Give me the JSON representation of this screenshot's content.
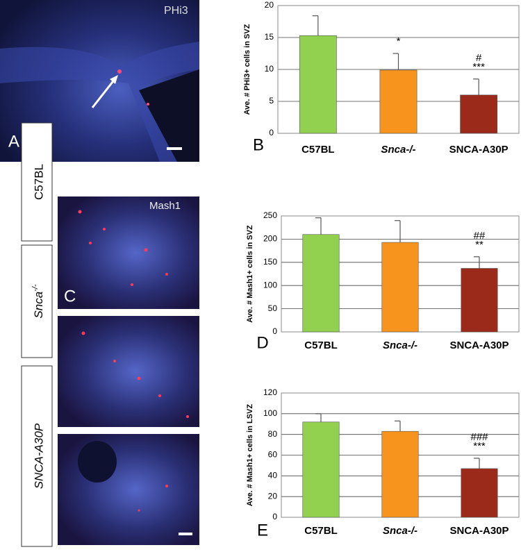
{
  "chart_data": [
    {
      "type": "bar",
      "panel": "B",
      "ylabel": "Ave. # PHi3+ cells in SVZ",
      "categories": [
        "C57BL",
        "Snca-/-",
        "SNCA-A30P"
      ],
      "values": [
        15.3,
        9.9,
        6.0
      ],
      "errors": [
        3.1,
        2.6,
        2.5
      ],
      "colors": [
        "#92d050",
        "#f7941d",
        "#9c2a1a"
      ],
      "ylim": [
        0,
        20
      ],
      "yticks": [
        0,
        5,
        10,
        15,
        20
      ],
      "grid": true,
      "annotations": [
        {
          "category": "Snca-/-",
          "text": "*"
        },
        {
          "category": "SNCA-A30P",
          "text": "***"
        },
        {
          "category": "SNCA-A30P",
          "text": "#"
        }
      ]
    },
    {
      "type": "bar",
      "panel": "D",
      "ylabel": "Ave. # Mash1+ cells in SVZ",
      "categories": [
        "C57BL",
        "Snca-/-",
        "SNCA-A30P"
      ],
      "values": [
        210,
        193,
        137
      ],
      "errors": [
        36,
        47,
        25
      ],
      "colors": [
        "#92d050",
        "#f7941d",
        "#9c2a1a"
      ],
      "ylim": [
        0,
        250
      ],
      "yticks": [
        0,
        50,
        100,
        150,
        200,
        250
      ],
      "grid": true,
      "annotations": [
        {
          "category": "SNCA-A30P",
          "text": "**"
        },
        {
          "category": "SNCA-A30P",
          "text": "##"
        }
      ]
    },
    {
      "type": "bar",
      "panel": "E",
      "ylabel": "Ave. # Mash1+ cells in LSVZ",
      "categories": [
        "C57BL",
        "Snca-/-",
        "SNCA-A30P"
      ],
      "values": [
        92,
        83,
        47
      ],
      "errors": [
        8,
        10,
        10
      ],
      "colors": [
        "#92d050",
        "#f7941d",
        "#9c2a1a"
      ],
      "ylim": [
        0,
        120
      ],
      "yticks": [
        0,
        20,
        40,
        60,
        80,
        100,
        120
      ],
      "grid": true,
      "annotations": [
        {
          "category": "SNCA-A30P",
          "text": "***"
        },
        {
          "category": "SNCA-A30P",
          "text": "###"
        }
      ]
    }
  ],
  "images": {
    "panel_a": {
      "label": "A",
      "stain": "PHi3"
    },
    "panel_c": {
      "label": "C",
      "stain": "Mash1",
      "rows": [
        {
          "base": "C57BL"
        },
        {
          "base": "Snca",
          "sup": "-/-"
        },
        {
          "base": "SNCA-A30P"
        }
      ]
    }
  }
}
